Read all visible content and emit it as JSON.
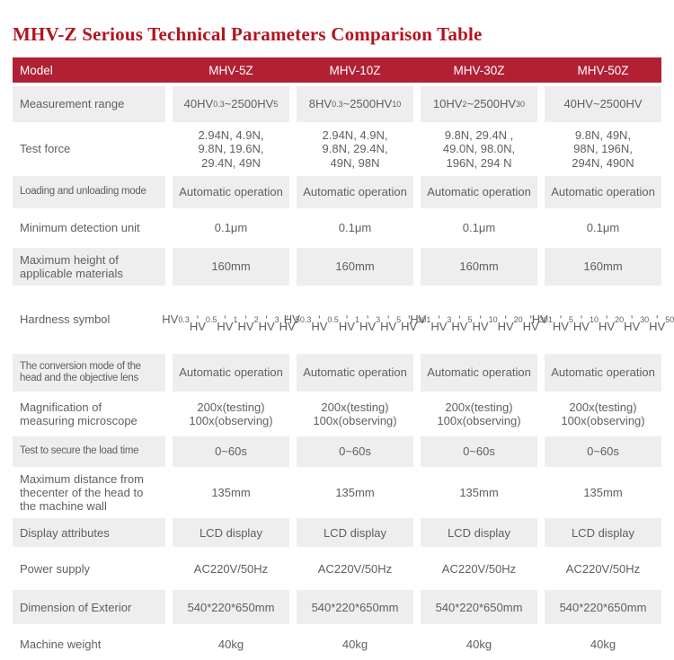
{
  "title": "MHV-Z Serious Technical Parameters Comparison Table",
  "colors": {
    "title_text": "#b5121d",
    "header_bg": "#b12033",
    "header_text": "#ffffff",
    "striped_row_bg": "#eeeeee",
    "cell_text": "#5f6064"
  },
  "table": {
    "header": {
      "model_label": "Model",
      "columns": [
        "MHV-5Z",
        "MHV-10Z",
        "MHV-30Z",
        "MHV-50Z"
      ]
    },
    "rows": [
      {
        "label": "Measurement range",
        "values": [
          "40HV0.3~2500HV5",
          "8HV0.3~2500HV10",
          "10HV2~2500HV30",
          "40HV~2500HV"
        ]
      },
      {
        "label": "Test force",
        "values": [
          "2.94N, 4.9N,\n9.8N, 19.6N,\n29.4N, 49N",
          "2.94N, 4.9N,\n9.8N, 29.4N,\n49N, 98N",
          "9.8N, 29.4N ,\n49.0N, 98.0N,\n196N, 294 N",
          "9.8N, 49N,\n98N, 196N,\n294N, 490N"
        ]
      },
      {
        "label": "Loading and unloading mode",
        "values": [
          "Automatic operation",
          "Automatic operation",
          "Automatic operation",
          "Automatic operation"
        ]
      },
      {
        "label": "Minimum detection unit",
        "values": [
          "0.1μm",
          "0.1μm",
          "0.1μm",
          "0.1μm"
        ]
      },
      {
        "label": "Maximum height of\napplicable materials",
        "values": [
          "160mm",
          "160mm",
          "160mm",
          "160mm"
        ]
      },
      {
        "label": "Hardness symbol",
        "values": [
          "HV0.3, HV0.5,\nHV1, HV2,\nHV3, HV5",
          "HV0.3, HV0.5,\nHV1, HV3,\nHV5, HV10",
          "HV1, HV3,\nHV5, HV10,\nHV20, HV30",
          "HV1, HV5,\nHV10, HV20,\nHV30, HV50"
        ]
      },
      {
        "label": "The conversion mode of the\nhead and the objective lens",
        "values": [
          "Automatic operation",
          "Automatic operation",
          "Automatic operation",
          "Automatic operation"
        ]
      },
      {
        "label": "Magnification of\nmeasuring microscope",
        "values": [
          "200x(testing)\n100x(observing)",
          "200x(testing)\n100x(observing)",
          "200x(testing)\n100x(observing)",
          "200x(testing)\n100x(observing)"
        ]
      },
      {
        "label": "Test to secure the load time",
        "values": [
          "0~60s",
          "0~60s",
          "0~60s",
          "0~60s"
        ]
      },
      {
        "label": "Maximum distance from\nthecenter of the head to\nthe machine wall",
        "values": [
          "135mm",
          "135mm",
          "135mm",
          "135mm"
        ]
      },
      {
        "label": "Display attributes",
        "values": [
          "LCD display",
          "LCD display",
          "LCD display",
          "LCD display"
        ]
      },
      {
        "label": "Power supply",
        "values": [
          "AC220V/50Hz",
          "AC220V/50Hz",
          "AC220V/50Hz",
          "AC220V/50Hz"
        ]
      },
      {
        "label": "Dimension of Exterior",
        "values": [
          "540*220*650mm",
          "540*220*650mm",
          "540*220*650mm",
          "540*220*650mm"
        ]
      },
      {
        "label": "Machine weight",
        "values": [
          "40kg",
          "40kg",
          "40kg",
          "40kg"
        ]
      }
    ]
  }
}
